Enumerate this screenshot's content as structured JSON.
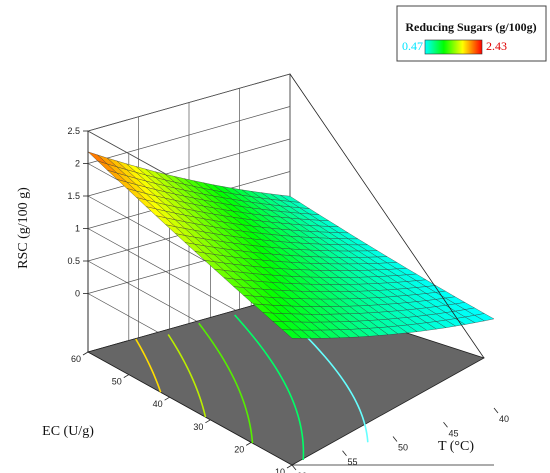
{
  "chart_data": {
    "type": "surface",
    "legend": {
      "title": "Reducing Sugars (g/100g)",
      "min_label": "0.47",
      "max_label": "2.43",
      "min": 0.47,
      "max": 2.43,
      "colors": [
        "#00ffff",
        "#00ff00",
        "#ffff00",
        "#ff0000"
      ]
    },
    "z_axis": {
      "label": "RSC (g/100 g)",
      "ticks": [
        "0",
        "0.5",
        "1",
        "1.5",
        "2",
        "2.5"
      ],
      "range": [
        0,
        2.5
      ]
    },
    "ec_axis": {
      "label": "EC (U/g)",
      "ticks": [
        "60",
        "50",
        "40",
        "30",
        "20",
        "10"
      ],
      "range": [
        10,
        60
      ]
    },
    "t_axis": {
      "label": "T  (°C)",
      "ticks": [
        "40",
        "45",
        "50",
        "55",
        "60"
      ],
      "range": [
        40,
        60
      ]
    },
    "corners": [
      {
        "ec": 60,
        "t": 60,
        "rsc": 2.18
      },
      {
        "ec": 60,
        "t": 40,
        "rsc": 0.62
      },
      {
        "ec": 10,
        "t": 60,
        "rsc": 1.05
      },
      {
        "ec": 10,
        "t": 40,
        "rsc": 0.47
      }
    ],
    "contour_levels": [
      0.75,
      1.0,
      1.25,
      1.5,
      1.75
    ],
    "contour_colors": [
      "#66ffff",
      "#00ff66",
      "#55ee00",
      "#bbee00",
      "#ffdd00"
    ],
    "floor_color": "#666666"
  }
}
